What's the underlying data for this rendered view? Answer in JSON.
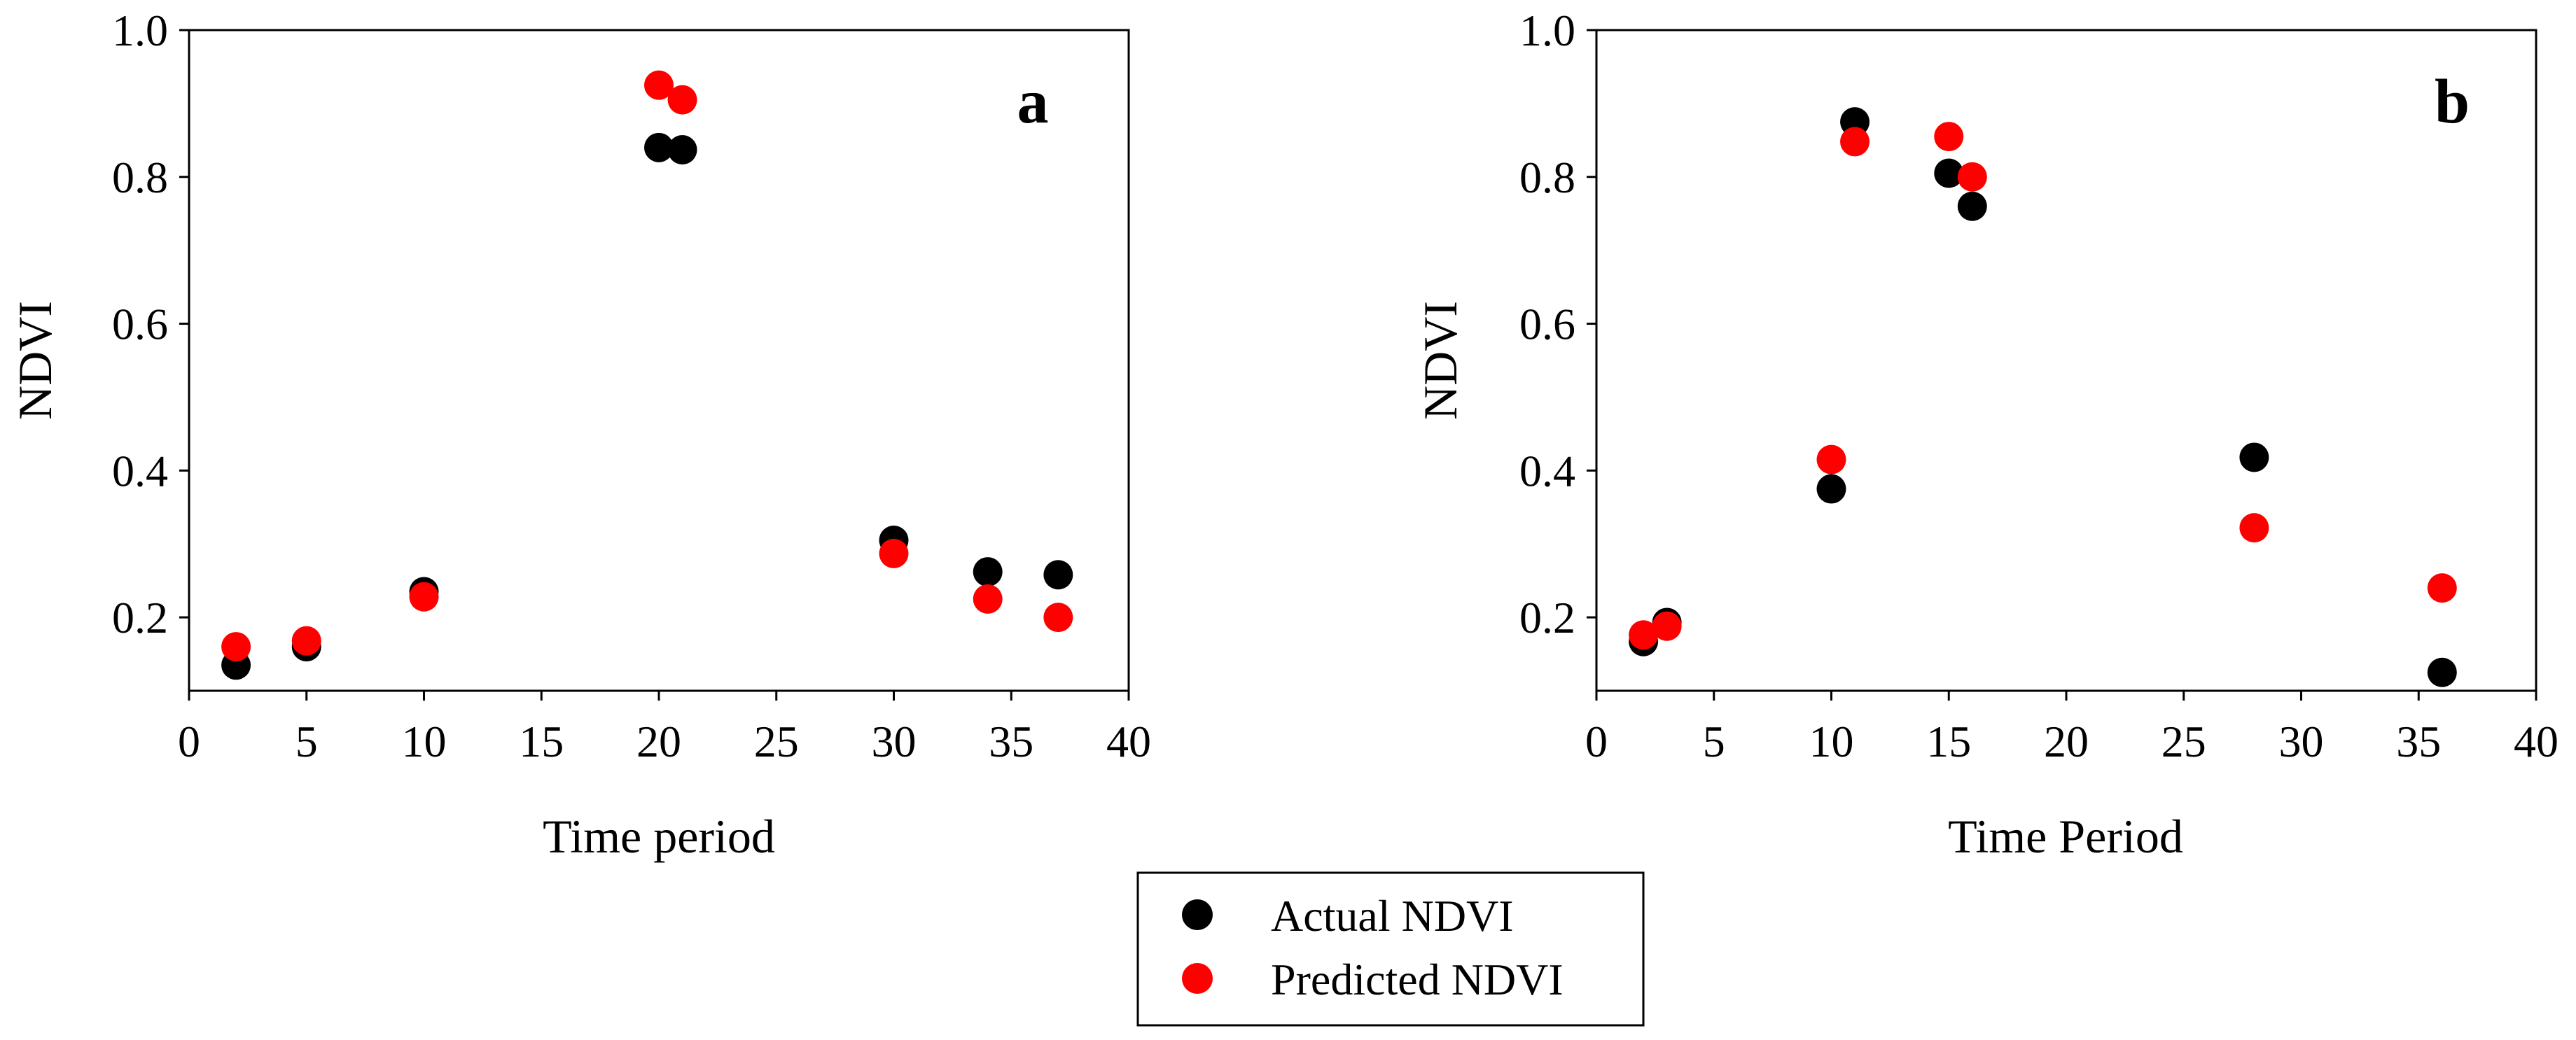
{
  "chart_data": [
    {
      "type": "scatter",
      "panel_label": "a",
      "xlabel": "Time period",
      "ylabel": "NDVI",
      "xlim": [
        0,
        40
      ],
      "ylim": [
        0.1,
        1.0
      ],
      "x_ticks": [
        "0",
        "5",
        "10",
        "15",
        "20",
        "25",
        "30",
        "35",
        "40"
      ],
      "y_ticks": [
        "0.2",
        "0.4",
        "0.6",
        "0.8",
        "1.0"
      ],
      "grid": false,
      "series": [
        {
          "name": "Actual NDVI",
          "color": "#000000",
          "x": [
            2,
            5,
            10,
            20,
            21,
            30,
            34,
            37
          ],
          "y": [
            0.135,
            0.16,
            0.235,
            0.84,
            0.837,
            0.305,
            0.262,
            0.258
          ]
        },
        {
          "name": "Predicted NDVI",
          "color": "#ff0000",
          "x": [
            2,
            5,
            10,
            20,
            21,
            30,
            34,
            37
          ],
          "y": [
            0.16,
            0.168,
            0.228,
            0.925,
            0.905,
            0.287,
            0.225,
            0.2
          ]
        }
      ]
    },
    {
      "type": "scatter",
      "panel_label": "b",
      "xlabel": "Time Period",
      "ylabel": "NDVI",
      "xlim": [
        0,
        40
      ],
      "ylim": [
        0.1,
        1.0
      ],
      "x_ticks": [
        "0",
        "5",
        "10",
        "15",
        "20",
        "25",
        "30",
        "35",
        "40"
      ],
      "y_ticks": [
        "0.2",
        "0.4",
        "0.6",
        "0.8",
        "1.0"
      ],
      "grid": false,
      "series": [
        {
          "name": "Actual NDVI",
          "color": "#000000",
          "x": [
            2,
            3,
            10,
            11,
            15,
            16,
            28,
            36
          ],
          "y": [
            0.167,
            0.193,
            0.375,
            0.875,
            0.805,
            0.76,
            0.418,
            0.125
          ]
        },
        {
          "name": "Predicted NDVI",
          "color": "#ff0000",
          "x": [
            2,
            3,
            10,
            11,
            15,
            16,
            28,
            36
          ],
          "y": [
            0.176,
            0.188,
            0.415,
            0.848,
            0.855,
            0.8,
            0.322,
            0.24
          ]
        }
      ]
    }
  ],
  "legend": {
    "placement": "bottom-center",
    "items": [
      {
        "label": "Actual NDVI",
        "color": "#000000"
      },
      {
        "label": "Predicted NDVI",
        "color": "#ff0000"
      }
    ]
  }
}
